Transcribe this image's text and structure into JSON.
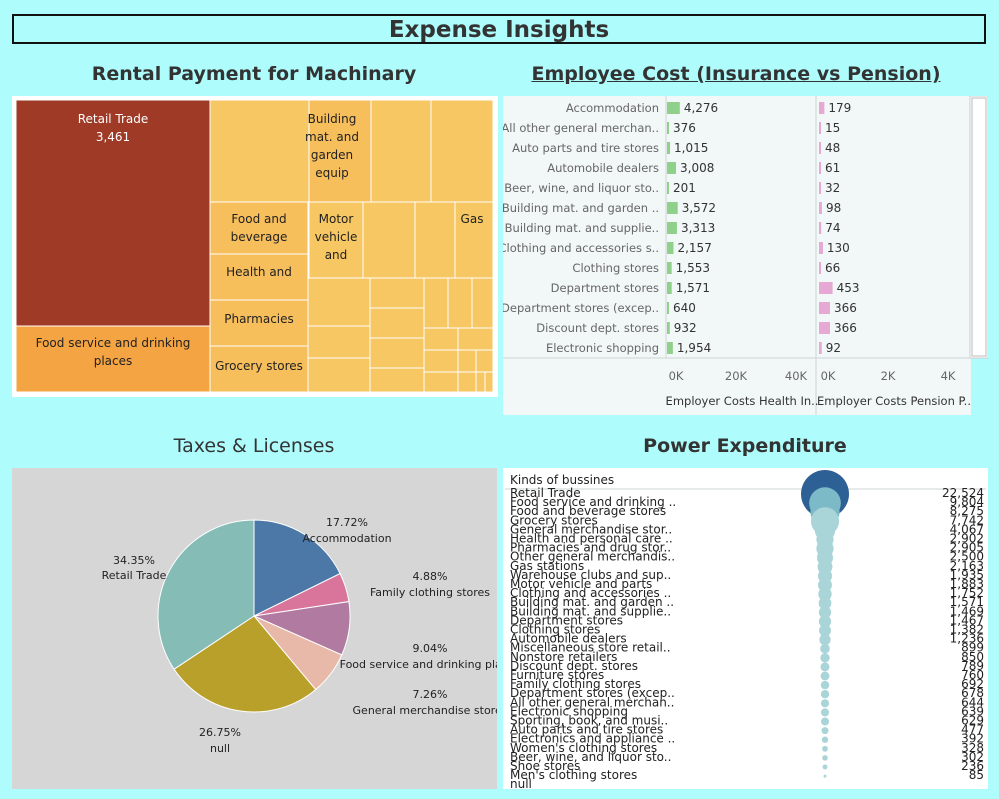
{
  "dashboard": {
    "title": "Expense Insights"
  },
  "sections": {
    "rental": "Rental Payment for Machinary",
    "employee": "Employee Cost (Insurance vs Pension)",
    "taxes": "Taxes & Licenses",
    "power": "Power Expenditure"
  },
  "chart_data": [
    {
      "type": "treemap",
      "name": "rental",
      "items": [
        {
          "label": "Retail Trade",
          "value": 3461,
          "color": "#9e3a26",
          "label_color": "#ffffff"
        },
        {
          "label": "Food service and drinking places",
          "color": "#f4a443"
        },
        {
          "label": "Building mat. and garden equip",
          "color": "#f7be5c"
        },
        {
          "label": "Food and beverage",
          "color": "#f7be5c"
        },
        {
          "label": "Motor vehicle and",
          "color": "#f7c763"
        },
        {
          "label": "Gas",
          "color": "#f7c763"
        },
        {
          "label": "Health and",
          "color": "#f7be5c"
        },
        {
          "label": "Pharmacies",
          "color": "#f7be5c"
        },
        {
          "label": "Grocery stores",
          "color": "#f7be5c"
        }
      ]
    },
    {
      "type": "bar",
      "name": "employee",
      "orientation": "horizontal",
      "categories": [
        "Accommodation",
        "All other general merchan..",
        "Auto parts and tire stores",
        "Automobile dealers",
        "Beer, wine, and liquor sto..",
        "Building mat. and garden ..",
        "Building mat. and supplie..",
        "Clothing and accessories s..",
        "Clothing stores",
        "Department stores",
        "Department stores (excep..",
        "Discount dept. stores",
        "Electronic shopping"
      ],
      "series": [
        {
          "name": "Employer Costs Health In..",
          "values": [
            4276,
            376,
            1015,
            3008,
            201,
            3572,
            3313,
            2157,
            1553,
            1571,
            640,
            932,
            1954
          ],
          "color": "#8fd18a",
          "ticks": [
            "0K",
            "20K",
            "40K"
          ],
          "max": 50000
        },
        {
          "name": "Employer Costs Pension P..",
          "values": [
            179,
            15,
            48,
            61,
            32,
            98,
            74,
            130,
            66,
            453,
            366,
            366,
            92
          ],
          "color": "#e6a9d4",
          "ticks": [
            "0K",
            "2K",
            "4K"
          ],
          "max": 5000
        }
      ]
    },
    {
      "type": "pie",
      "name": "taxes",
      "slices": [
        {
          "label": "Accommodation",
          "pct": "17.72%",
          "value": 17.72,
          "color": "#4c78a8"
        },
        {
          "label": "Family clothing stores",
          "pct": "4.88%",
          "value": 4.88,
          "color": "#d9759a"
        },
        {
          "label": "Food service and drinking places",
          "pct": "9.04%",
          "value": 9.04,
          "color": "#b07aa1"
        },
        {
          "label": "General merchandise stores",
          "pct": "7.26%",
          "value": 7.26,
          "color": "#e8b9a9"
        },
        {
          "label": "null",
          "pct": "26.75%",
          "value": 26.75,
          "color": "#b9a02a"
        },
        {
          "label": "Retail Trade",
          "pct": "34.35%",
          "value": 34.35,
          "color": "#86bcb6"
        }
      ]
    },
    {
      "type": "scatter",
      "name": "power",
      "header": "Kinds of bussines",
      "labels": [
        "Retail Trade",
        "Food service and drinking ..",
        "Food and beverage stores",
        "Grocery stores",
        "General merchandise stor..",
        "Health and personal care ..",
        "Pharmacies and drug stor..",
        "Other general merchandis..",
        "Gas stations",
        "Warehouse clubs and sup..",
        "Motor vehicle and parts",
        "Clothing and accessories ..",
        "Building mat. and garden ..",
        "Building mat. and supplie..",
        "Department stores",
        "Clothing stores",
        "Automobile dealers",
        "Miscellaneous store retail..",
        "Nonstore retailers",
        "Discount dept. stores",
        "Furniture stores",
        "Family clothing stores",
        "Department stores (excep..",
        "All other general merchan..",
        "Electronic shopping",
        "Sporting, book, and musi..",
        "Auto parts and tire stores",
        "Electronics and appliance ..",
        "Women's clothing stores",
        "Beer, wine, and liquor sto..",
        "Shoe stores",
        "Men's clothing stores",
        "null"
      ],
      "values": [
        22524,
        9804,
        8275,
        7742,
        4067,
        2902,
        2905,
        2500,
        2163,
        1935,
        1883,
        1752,
        1571,
        1469,
        1467,
        1382,
        1236,
        899,
        850,
        789,
        760,
        692,
        678,
        644,
        639,
        629,
        477,
        392,
        328,
        302,
        236,
        85,
        null
      ],
      "value_labels": [
        "22,524",
        "9,804",
        "8,275",
        "7,742",
        "4,067",
        "2,902",
        "2,905",
        "2,500",
        "2,163",
        "1,935",
        "1,883",
        "1,752",
        "1,571",
        "1,469",
        "1,467",
        "1,382",
        "1,236",
        "899",
        "850",
        "789",
        "760",
        "692",
        "678",
        "644",
        "639",
        "629",
        "477",
        "392",
        "328",
        "302",
        "236",
        "85",
        ""
      ]
    }
  ]
}
